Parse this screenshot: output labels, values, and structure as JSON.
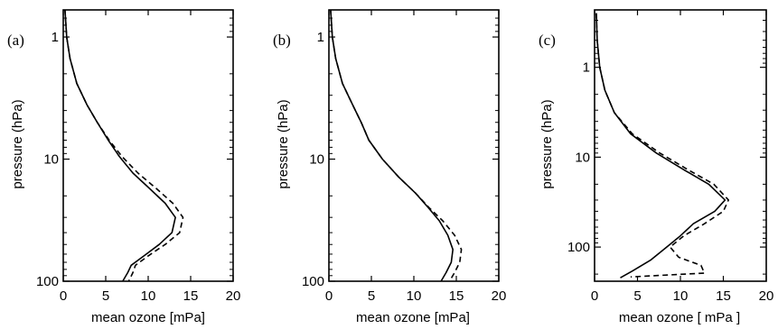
{
  "chart_data": [
    {
      "type": "line",
      "panel_label": "(a)",
      "xlabel": "mean ozone [mPa]",
      "ylabel": "pressure (hPa)",
      "xlim": [
        0,
        20
      ],
      "ylim": [
        0.6,
        100
      ],
      "yscale": "log",
      "y_inverted": true,
      "x_ticks": [
        "0",
        "5",
        "10",
        "15",
        "20"
      ],
      "y_ticks": [
        "1",
        "10",
        "100"
      ],
      "grid": false,
      "series": [
        {
          "style": "solid",
          "x": [
            0.2,
            0.4,
            0.8,
            1.6,
            2.8,
            4.0,
            5.3,
            6.6,
            8.2,
            10.2,
            12.0,
            13.2,
            12.8,
            11.3,
            9.5,
            8.0,
            7.6,
            7.0
          ],
          "y": [
            0.6,
            1.0,
            1.5,
            2.4,
            3.6,
            5.0,
            7.0,
            9.5,
            13.0,
            17.5,
            23.0,
            30.0,
            40.0,
            50.0,
            62.0,
            74.0,
            85.0,
            100.0
          ]
        },
        {
          "style": "dashed",
          "x": [
            0.2,
            0.4,
            0.8,
            1.6,
            2.8,
            4.0,
            5.4,
            6.9,
            8.8,
            11.0,
            12.9,
            14.1,
            13.7,
            12.0,
            10.0,
            8.5,
            8.2,
            7.7
          ],
          "y": [
            0.6,
            1.0,
            1.5,
            2.4,
            3.6,
            5.0,
            7.0,
            9.5,
            13.0,
            17.5,
            23.0,
            30.0,
            40.0,
            50.0,
            62.0,
            74.0,
            85.0,
            100.0
          ]
        }
      ]
    },
    {
      "type": "line",
      "panel_label": "(b)",
      "xlabel": "mean ozone [mPa]",
      "ylabel": "pressure (hPa)",
      "xlim": [
        0,
        20
      ],
      "ylim": [
        0.6,
        100
      ],
      "yscale": "log",
      "y_inverted": true,
      "x_ticks": [
        "0",
        "5",
        "10",
        "15",
        "20"
      ],
      "y_ticks": [
        "1",
        "10",
        "100"
      ],
      "grid": false,
      "series": [
        {
          "style": "solid",
          "x": [
            0.2,
            0.4,
            0.8,
            1.6,
            2.8,
            3.8,
            4.7,
            6.3,
            8.2,
            10.2,
            11.7,
            13.0,
            14.0,
            14.6,
            14.4,
            13.8,
            13.2
          ],
          "y": [
            0.6,
            1.0,
            1.5,
            2.4,
            3.6,
            5.0,
            7.0,
            10.0,
            14.0,
            19.0,
            25.0,
            32.0,
            42.0,
            55.0,
            70.0,
            85.0,
            100.0
          ]
        },
        {
          "style": "dashed",
          "x": [
            0.2,
            0.4,
            0.8,
            1.6,
            2.8,
            3.8,
            4.7,
            6.3,
            8.2,
            10.2,
            11.8,
            13.4,
            14.8,
            15.6,
            15.4,
            14.8,
            14.2
          ],
          "y": [
            0.6,
            1.0,
            1.5,
            2.4,
            3.6,
            5.0,
            7.0,
            10.0,
            14.0,
            19.0,
            25.0,
            32.0,
            42.0,
            55.0,
            70.0,
            85.0,
            100.0
          ]
        }
      ]
    },
    {
      "type": "line",
      "panel_label": "(c)",
      "xlabel": "mean ozone [ mPa ]",
      "ylabel": "pressure (hPa)",
      "xlim": [
        0,
        20
      ],
      "ylim": [
        0.23,
        240
      ],
      "yscale": "log",
      "y_inverted": true,
      "x_ticks": [
        "0",
        "5",
        "10",
        "15",
        "20"
      ],
      "y_ticks": [
        "1",
        "10",
        "100"
      ],
      "grid": false,
      "series": [
        {
          "style": "solid",
          "x": [
            0.2,
            0.3,
            0.6,
            1.2,
            2.3,
            4.2,
            7.2,
            10.5,
            13.3,
            15.2,
            14.0,
            11.5,
            10.0,
            8.4,
            6.5,
            4.4,
            3.0
          ],
          "y": [
            0.25,
            0.5,
            1.0,
            1.8,
            3.2,
            5.5,
            9.0,
            14.0,
            20.0,
            30.0,
            40.0,
            55.0,
            75.0,
            100.0,
            140.0,
            185.0,
            220.0
          ]
        },
        {
          "style": "dashed",
          "x": [
            0.2,
            0.3,
            0.6,
            1.2,
            2.3,
            4.4,
            7.6,
            11.0,
            13.9,
            15.6,
            15.0,
            12.8,
            10.4,
            8.8,
            9.8,
            12.4,
            12.8,
            4.2
          ],
          "y": [
            0.25,
            0.5,
            1.0,
            1.8,
            3.2,
            5.5,
            9.0,
            14.0,
            20.0,
            30.0,
            40.0,
            55.0,
            75.0,
            100.0,
            130.0,
            160.0,
            195.0,
            215.0
          ]
        }
      ]
    }
  ]
}
